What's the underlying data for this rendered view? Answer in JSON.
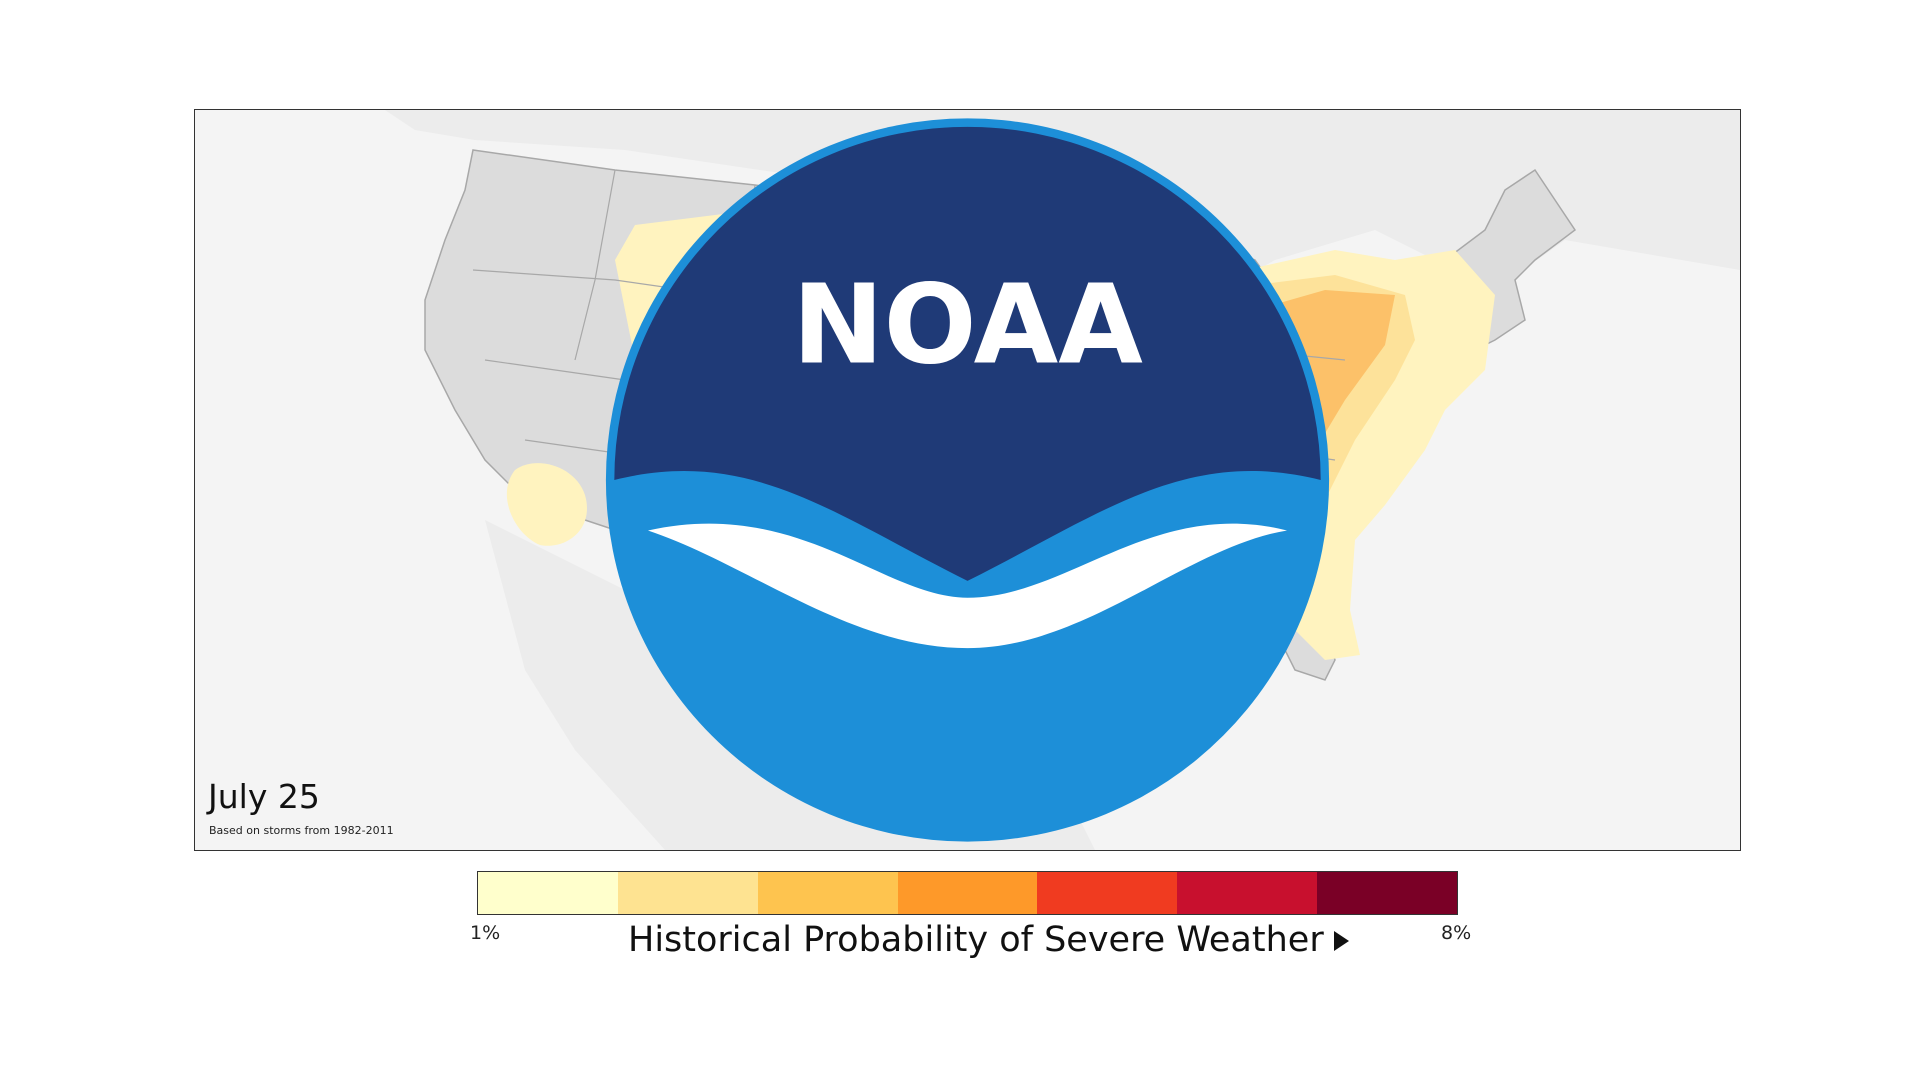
{
  "map": {
    "date": "July 25",
    "subtitle": "Based on storms from 1982-2011"
  },
  "legend": {
    "title": "Historical Probability of Severe Weather",
    "min_label": "1%",
    "max_label": "8%",
    "colors": [
      "#ffffcc",
      "#fee391",
      "#fec44f",
      "#fe9929",
      "#f03b20",
      "#c8102e",
      "#7a0026"
    ]
  },
  "logo": {
    "text": "NOAA",
    "icon": "noaa-logo-icon"
  },
  "colors": {
    "land": "#dcdcdc",
    "background": "#f4f4f4",
    "borders": "#a8a8a8"
  }
}
